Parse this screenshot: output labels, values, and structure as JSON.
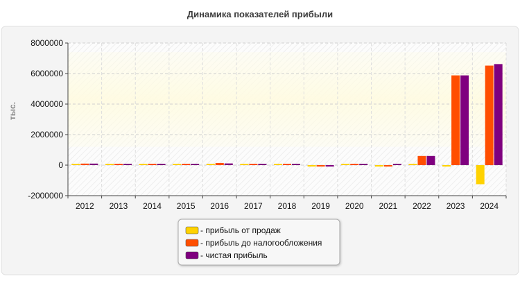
{
  "chart_data": {
    "type": "bar",
    "title": "Динамика показателей прибыли",
    "ylabel": "тыс.",
    "xlabel": "",
    "ylim": [
      -2000000,
      8000000
    ],
    "yticks": [
      8000000,
      6000000,
      4000000,
      2000000,
      0,
      -2000000
    ],
    "ytick_labels": [
      "8000000",
      "6000000",
      "4000000",
      "2000000",
      "0",
      "-2000000"
    ],
    "grid": true,
    "legend_position": "bottom-center",
    "categories": [
      "2012",
      "2013",
      "2014",
      "2015",
      "2016",
      "2017",
      "2018",
      "2019",
      "2020",
      "2021",
      "2022",
      "2023",
      "2024"
    ],
    "series": [
      {
        "name": "- прибыль от продаж",
        "color": "#ffd200",
        "values": [
          40000,
          70000,
          50000,
          45000,
          50000,
          35000,
          30000,
          -50000,
          30000,
          -20000,
          30000,
          -60000,
          -1250000
        ]
      },
      {
        "name": "- прибыль до налогообложения",
        "color": "#ff4e00",
        "values": [
          100000,
          70000,
          60000,
          60000,
          140000,
          70000,
          60000,
          -60000,
          70000,
          -80000,
          600000,
          5880000,
          6520000
        ]
      },
      {
        "name": "- чистая прибыль",
        "color": "#7f007f",
        "values": [
          100000,
          60000,
          55000,
          55000,
          110000,
          60000,
          50000,
          -70000,
          60000,
          50000,
          600000,
          5880000,
          6620000
        ]
      }
    ]
  }
}
